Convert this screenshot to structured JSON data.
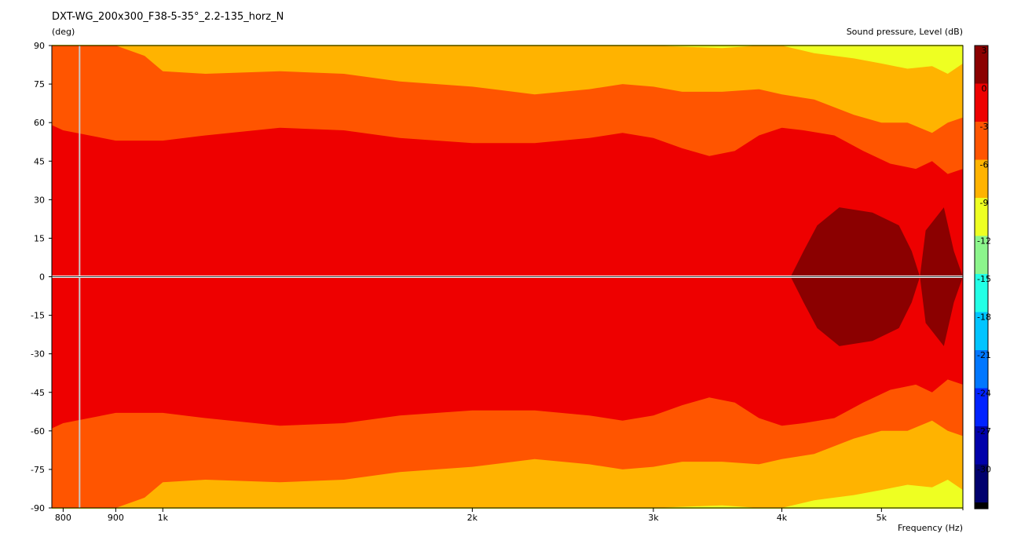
{
  "chart_data": {
    "type": "heatmap",
    "title": "DXT-WG_200x300_F38-5-35°_2.2-135_horz_N",
    "ylabel": "(deg)",
    "xlabel": "Frequency  (Hz)",
    "colorbar_label": "Sound pressure, Level  (dB)",
    "x_scale": "log",
    "xlim": [
      780,
      6000
    ],
    "ylim": [
      -90,
      90
    ],
    "x_ticks": [
      {
        "value": 800,
        "label": "800"
      },
      {
        "value": 900,
        "label": "900"
      },
      {
        "value": 1000,
        "label": "1k"
      },
      {
        "value": 2000,
        "label": "2k"
      },
      {
        "value": 3000,
        "label": "3k"
      },
      {
        "value": 4000,
        "label": "4k"
      },
      {
        "value": 5000,
        "label": "5k"
      }
    ],
    "x_minor_ticks": [
      6000
    ],
    "y_ticks": [
      {
        "value": 90,
        "label": "90"
      },
      {
        "value": 75,
        "label": "75"
      },
      {
        "value": 60,
        "label": "60"
      },
      {
        "value": 45,
        "label": "45"
      },
      {
        "value": 30,
        "label": "30"
      },
      {
        "value": 15,
        "label": "15"
      },
      {
        "value": 0,
        "label": "0"
      },
      {
        "value": -15,
        "label": "-15"
      },
      {
        "value": -30,
        "label": "-30"
      },
      {
        "value": -45,
        "label": "-45"
      },
      {
        "value": -60,
        "label": "-60"
      },
      {
        "value": -75,
        "label": "-75"
      },
      {
        "value": -90,
        "label": "-90"
      }
    ],
    "marker_frequency": 830,
    "levels": [
      {
        "label": "3",
        "color": "#8b0000"
      },
      {
        "label": "0",
        "color": "#ee0000"
      },
      {
        "label": "-3",
        "color": "#ff5500"
      },
      {
        "label": "-6",
        "color": "#ffb300"
      },
      {
        "label": "-9",
        "color": "#eeff22"
      },
      {
        "label": "-12",
        "color": "#8cf58c"
      },
      {
        "label": "-15",
        "color": "#22ffe6"
      },
      {
        "label": "-18",
        "color": "#00c4ff"
      },
      {
        "label": "-21",
        "color": "#0077ff"
      },
      {
        "label": "-24",
        "color": "#0022ff"
      },
      {
        "label": "-27",
        "color": "#0000aa"
      },
      {
        "label": "-30",
        "color": "#00006e"
      }
    ],
    "band_bottom_color": "#000000",
    "contours": [
      {
        "level": "-3",
        "color": "#ff5500",
        "points": [
          [
            780,
            59
          ],
          [
            800,
            57
          ],
          [
            900,
            53
          ],
          [
            1000,
            53
          ],
          [
            1100,
            55
          ],
          [
            1300,
            58
          ],
          [
            1500,
            57
          ],
          [
            1700,
            54
          ],
          [
            2000,
            52
          ],
          [
            2300,
            52
          ],
          [
            2600,
            54
          ],
          [
            2800,
            56
          ],
          [
            3000,
            54
          ],
          [
            3200,
            50
          ],
          [
            3400,
            47
          ],
          [
            3600,
            49
          ],
          [
            3800,
            55
          ],
          [
            4000,
            58
          ],
          [
            4200,
            57
          ],
          [
            4500,
            55
          ],
          [
            4800,
            49
          ],
          [
            5100,
            44
          ],
          [
            5400,
            42
          ],
          [
            5600,
            45
          ],
          [
            5800,
            40
          ],
          [
            6000,
            42
          ]
        ]
      },
      {
        "level": "-6",
        "color": "#ffb300",
        "points": [
          [
            780,
            90
          ],
          [
            900,
            90
          ],
          [
            960,
            86
          ],
          [
            1000,
            80
          ],
          [
            1100,
            79
          ],
          [
            1300,
            80
          ],
          [
            1500,
            79
          ],
          [
            1700,
            76
          ],
          [
            2000,
            74
          ],
          [
            2300,
            71
          ],
          [
            2600,
            73
          ],
          [
            2800,
            75
          ],
          [
            3000,
            74
          ],
          [
            3200,
            72
          ],
          [
            3500,
            72
          ],
          [
            3800,
            73
          ],
          [
            4000,
            71
          ],
          [
            4300,
            69
          ],
          [
            4700,
            63
          ],
          [
            5000,
            60
          ],
          [
            5300,
            60
          ],
          [
            5600,
            56
          ],
          [
            5800,
            60
          ],
          [
            6000,
            62
          ]
        ]
      },
      {
        "level": "-9",
        "color": "#eeff22",
        "points": [
          [
            780,
            90
          ],
          [
            3000,
            90
          ],
          [
            3500,
            89
          ],
          [
            3800,
            90
          ],
          [
            4000,
            90
          ],
          [
            4300,
            87
          ],
          [
            4700,
            85
          ],
          [
            5000,
            83
          ],
          [
            5300,
            81
          ],
          [
            5600,
            82
          ],
          [
            5800,
            79
          ],
          [
            6000,
            83
          ]
        ]
      },
      {
        "level": "3",
        "color": "#8b0000",
        "points": [
          [
            4080,
            0
          ],
          [
            4200,
            10
          ],
          [
            4330,
            20
          ],
          [
            4550,
            27
          ],
          [
            4900,
            25
          ],
          [
            5200,
            20
          ],
          [
            5350,
            10
          ],
          [
            5450,
            0
          ],
          [
            5520,
            18
          ],
          [
            5750,
            27
          ],
          [
            5880,
            10
          ],
          [
            6000,
            0
          ]
        ]
      }
    ]
  }
}
